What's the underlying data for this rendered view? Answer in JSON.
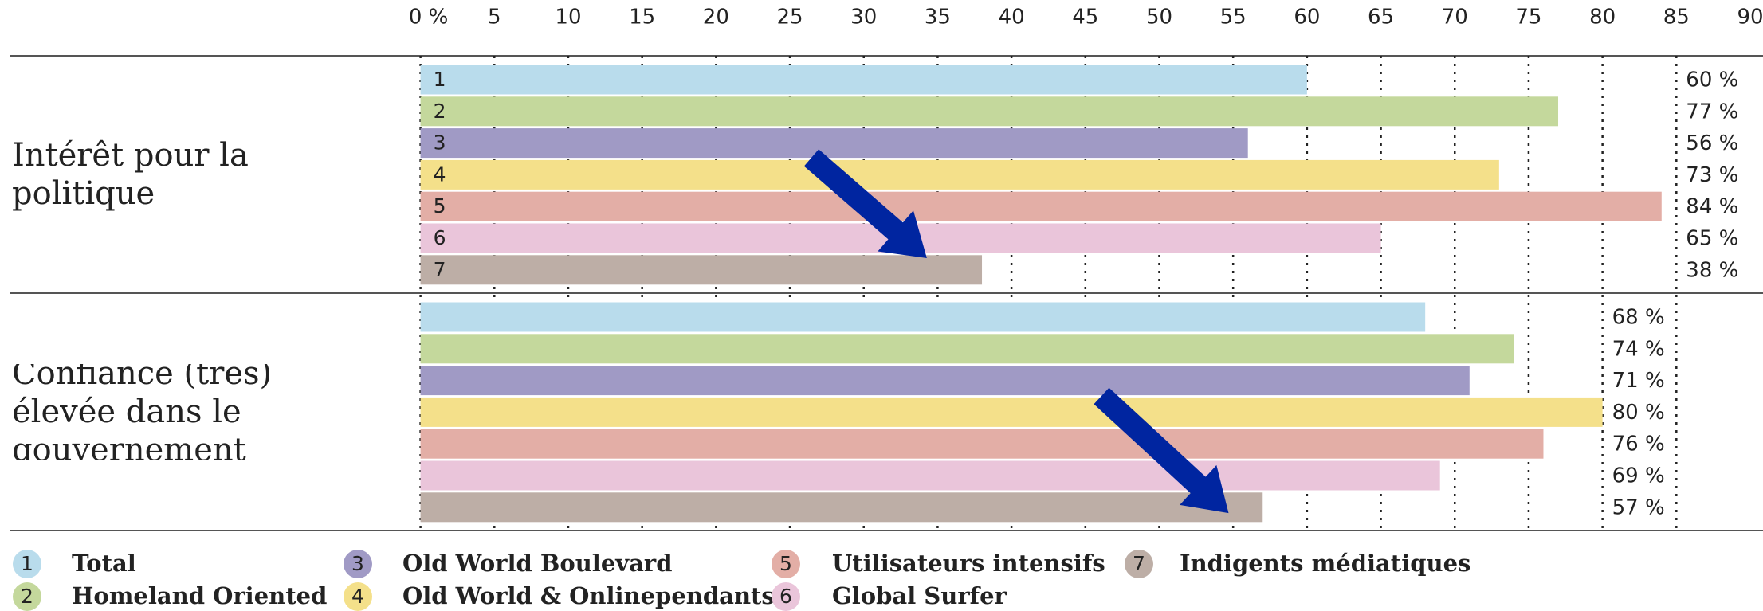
{
  "chart_data": {
    "type": "bar",
    "orientation": "horizontal",
    "categories": [
      "Intérêt pour la politique",
      "Confiance (très) élevée dans le gouvernement"
    ],
    "series": [
      {
        "key": "1",
        "name": "Total",
        "color": "#b9dcec",
        "values": [
          60,
          68
        ],
        "value_labels": [
          "60 %",
          "68 %"
        ]
      },
      {
        "key": "2",
        "name": "Homeland Oriented",
        "color": "#c4d89c",
        "values": [
          77,
          74
        ],
        "value_labels": [
          "77 %",
          "74 %"
        ]
      },
      {
        "key": "3",
        "name": "Old World Boulevard",
        "color": "#a09ac5",
        "values": [
          56,
          71
        ],
        "value_labels": [
          "56 %",
          "71 %"
        ]
      },
      {
        "key": "4",
        "name": "Old World & Onlinependants",
        "color": "#f4e08a",
        "values": [
          73,
          80
        ],
        "value_labels": [
          "73 %",
          "80 %"
        ]
      },
      {
        "key": "5",
        "name": "Utilisateurs intensifs",
        "color": "#e3aea6",
        "values": [
          84,
          76
        ],
        "value_labels": [
          "84 %",
          "76 %"
        ]
      },
      {
        "key": "6",
        "name": "Global Surfer",
        "color": "#eac5da",
        "values": [
          65,
          69
        ],
        "value_labels": [
          "65 %",
          "69 %"
        ]
      },
      {
        "key": "7",
        "name": "Indigents médiatiques",
        "color": "#bdaea6",
        "values": [
          38,
          57
        ],
        "value_labels": [
          "38 %",
          "57 %"
        ]
      }
    ],
    "xlim": [
      0,
      90
    ],
    "xticks": [
      {
        "value": 0,
        "label": "0 %"
      },
      5,
      10,
      15,
      20,
      25,
      30,
      35,
      40,
      45,
      50,
      55,
      60,
      65,
      70,
      75,
      80,
      85,
      90
    ],
    "grid": true
  }
}
